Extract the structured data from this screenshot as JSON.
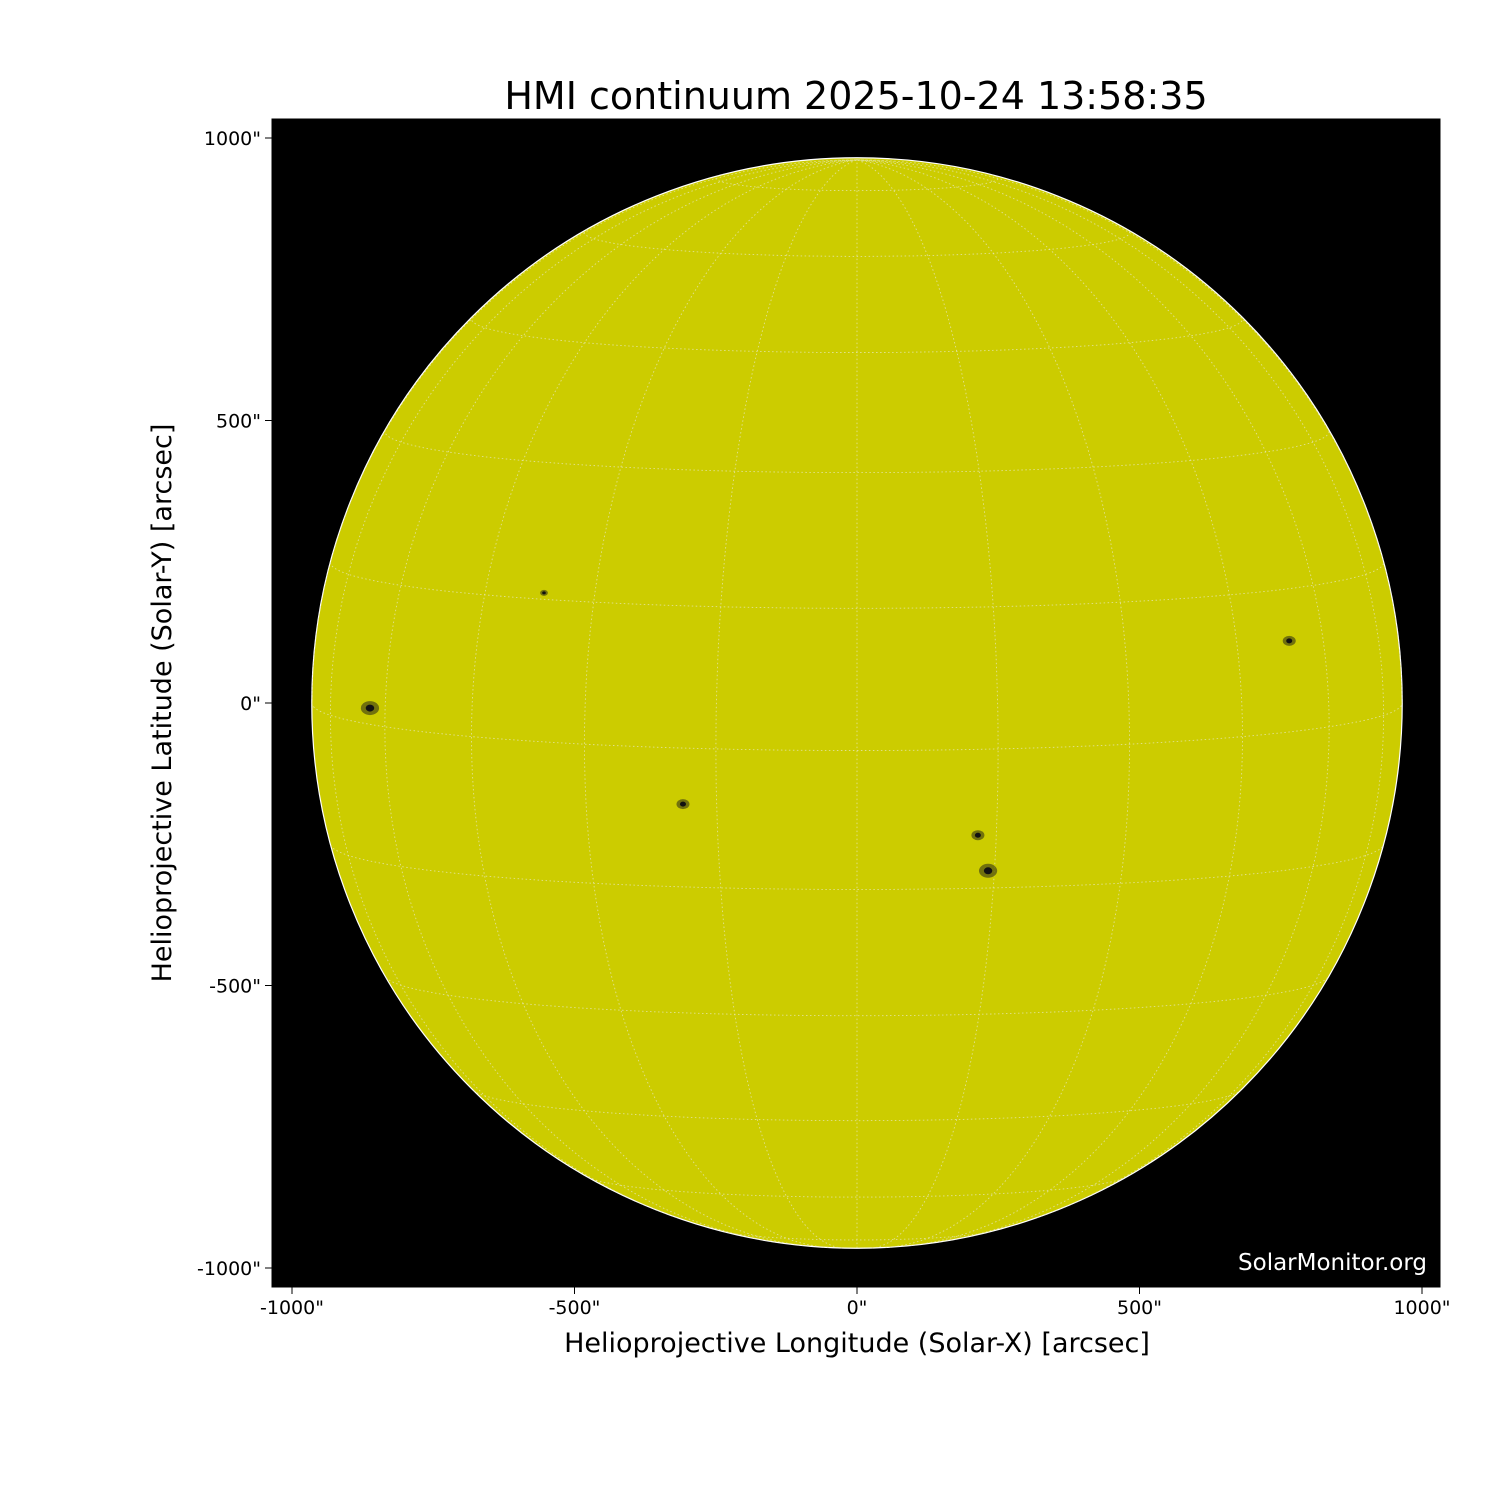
{
  "chart_data": {
    "type": "image",
    "title": "HMI continuum 2025-10-24 13:58:35",
    "xlabel": "Helioprojective Longitude (Solar-X) [arcsec]",
    "ylabel": "Helioprojective Latitude (Solar-Y) [arcsec]",
    "xlim": [
      -1035,
      1035
    ],
    "ylim": [
      -1035,
      1035
    ],
    "xticks": [
      -1000,
      -500,
      0,
      500,
      1000
    ],
    "xtick_labels": [
      "-1000\"",
      "-500\"",
      "0\"",
      "500\"",
      "1000\""
    ],
    "yticks": [
      1000,
      500,
      0,
      -500,
      -1000
    ],
    "ytick_labels": [
      "1000\"",
      "500\"",
      "0\"",
      "-500\"",
      "-1000\""
    ],
    "solar_radius_arcsec": 965,
    "grid": "heliographic, 15 degree spacing, dotted white",
    "disk_color": "#cccc00",
    "background_color": "#000000",
    "sunspots": [
      {
        "x": -862,
        "y": -9,
        "size": "large"
      },
      {
        "x": -554,
        "y": 195,
        "size": "small"
      },
      {
        "x": -308,
        "y": -179,
        "size": "medium"
      },
      {
        "x": 214,
        "y": -234,
        "size": "medium"
      },
      {
        "x": 232,
        "y": -297,
        "size": "large"
      },
      {
        "x": 765,
        "y": 110,
        "size": "medium"
      }
    ],
    "credit": "SolarMonitor.org"
  }
}
